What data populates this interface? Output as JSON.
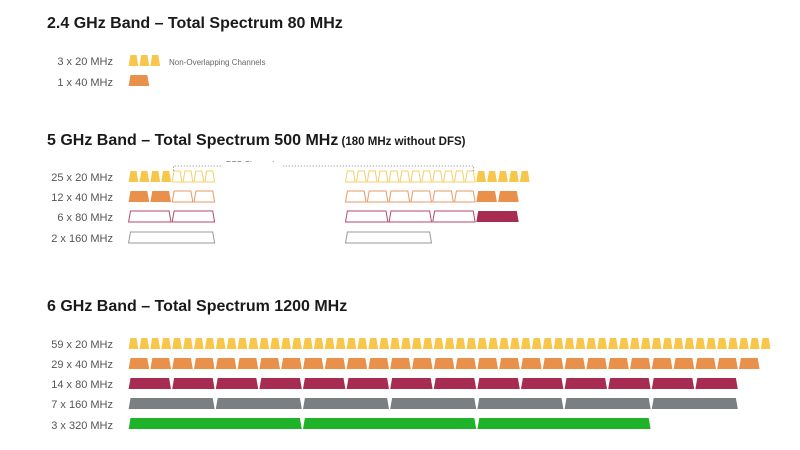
{
  "colors": {
    "ch20": "#f7c64a",
    "ch40": "#e9904a",
    "ch80": "#a82c52",
    "ch160": "#7b7f82",
    "ch320": "#1fb32a",
    "dfs_outline_20": "#f4cf6a",
    "dfs_outline_40": "#e89a63",
    "dfs_outline_80": "#b54a6a",
    "dfs_outline_160": "#9a9a9a",
    "bracket": "#8a8a8a"
  },
  "band24": {
    "title": "2.4 GHz Band – Total Spectrum 80 MHz",
    "note": "Non-Overlapping Channels",
    "rows": [
      {
        "label": "3 x 20 MHz",
        "kind": "ch20",
        "count": 3
      },
      {
        "label": "1 x 40 MHz",
        "kind": "ch40",
        "count": 1
      }
    ]
  },
  "band5": {
    "title": "5 GHz Band – Total Spectrum 500 MHz",
    "title_suffix": " (180 MHz without DFS)",
    "dfs_label": "DFS Channels",
    "rows": [
      {
        "label": "25 x 20 MHz",
        "kind": "ch20",
        "pattern": [
          [
            "F",
            4
          ],
          [
            "O",
            4
          ],
          [
            "GAP"
          ],
          [
            "O",
            12
          ],
          [
            "F",
            5
          ]
        ]
      },
      {
        "label": "12 x 40 MHz",
        "kind": "ch40",
        "pattern": [
          [
            "F",
            2
          ],
          [
            "O",
            2
          ],
          [
            "GAP"
          ],
          [
            "O",
            6
          ],
          [
            "F",
            2
          ]
        ]
      },
      {
        "label": "6 x 80 MHz",
        "kind": "ch80",
        "pattern": [
          [
            "O",
            2
          ],
          [
            "GAP"
          ],
          [
            "O",
            3
          ],
          [
            "F",
            1
          ]
        ]
      },
      {
        "label": "2 x 160 MHz",
        "kind": "ch160",
        "pattern": [
          [
            "O",
            1
          ],
          [
            "GAP"
          ],
          [
            "O",
            1
          ]
        ]
      }
    ]
  },
  "band6": {
    "title": "6 GHz Band – Total Spectrum 1200 MHz",
    "rows": [
      {
        "label": "59 x 20 MHz",
        "kind": "ch20",
        "count": 59
      },
      {
        "label": "29 x 40 MHz",
        "kind": "ch40",
        "count": 29
      },
      {
        "label": "14 x 80 MHz",
        "kind": "ch80",
        "count": 14
      },
      {
        "label": "7 x 160 MHz",
        "kind": "ch160",
        "count": 7
      },
      {
        "label": "3 x 320 MHz",
        "kind": "ch320",
        "count": 3
      }
    ]
  }
}
